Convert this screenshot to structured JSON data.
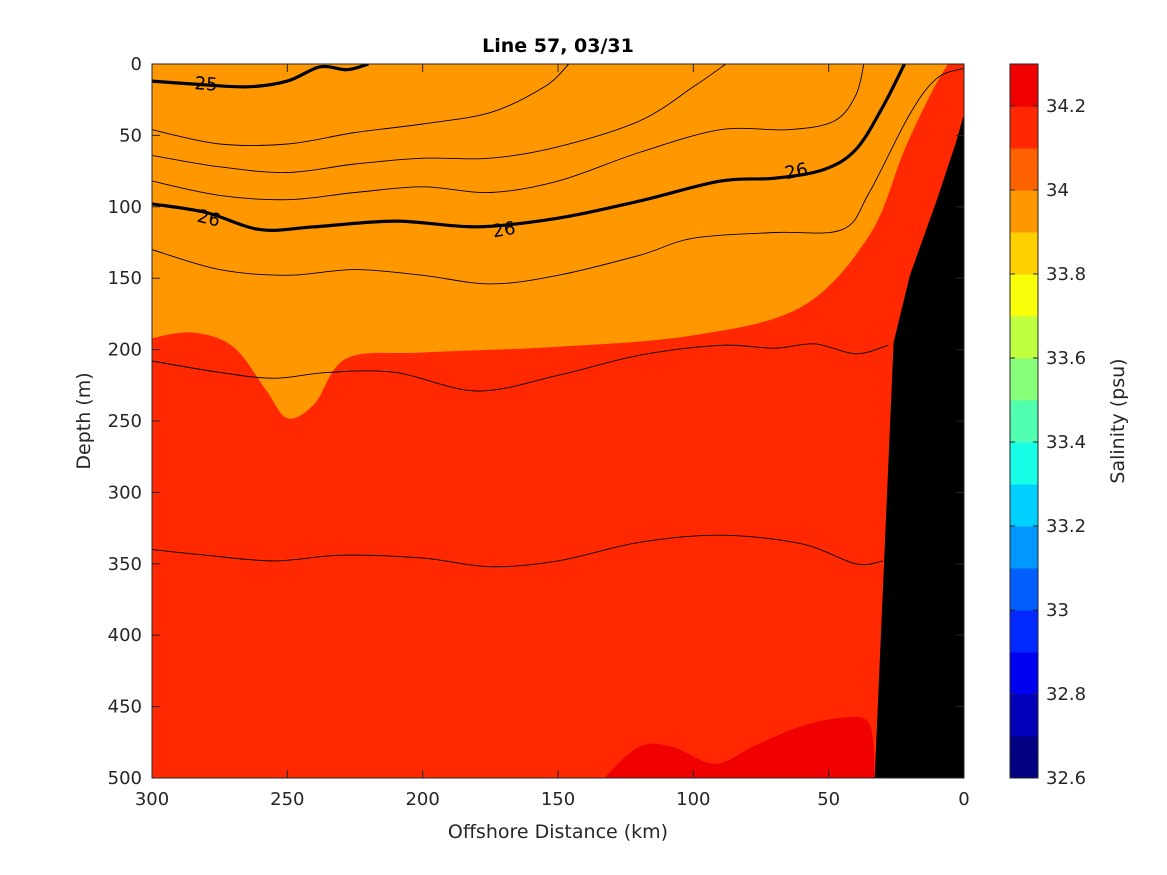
{
  "chart_data": {
    "type": "heatmap",
    "subtype": "filled contour section",
    "title": "Line 57, 03/31",
    "xlabel": "Offshore Distance (km)",
    "ylabel": "Depth (m)",
    "colorbar_label": "Salinity (psu)",
    "xlim": [
      300,
      0
    ],
    "ylim": [
      0,
      500
    ],
    "x_reversed": true,
    "y_reversed": true,
    "xticks": [
      300,
      250,
      200,
      150,
      100,
      50,
      0
    ],
    "yticks": [
      0,
      50,
      100,
      150,
      200,
      250,
      300,
      350,
      400,
      450,
      500
    ],
    "colorbar": {
      "levels": [
        32.6,
        32.7,
        32.8,
        32.9,
        33.0,
        33.1,
        33.2,
        33.3,
        33.4,
        33.5,
        33.6,
        33.7,
        33.8,
        33.9,
        34.0,
        34.1,
        34.2,
        34.3
      ],
      "ticks": [
        32.6,
        32.8,
        33.0,
        33.2,
        33.4,
        33.6,
        33.8,
        34.0,
        34.2
      ],
      "tick_labels": [
        "32.6",
        "32.8",
        "33",
        "33.2",
        "33.4",
        "33.6",
        "33.8",
        "34",
        "34.2"
      ],
      "colors": [
        "#000080",
        "#0000b8",
        "#0000f0",
        "#0028ff",
        "#0060ff",
        "#0098ff",
        "#00d0ff",
        "#18ffe8",
        "#50ffb0",
        "#88ff78",
        "#c0ff40",
        "#f8ff08",
        "#ffd000",
        "#ff9800",
        "#ff6000",
        "#ff2800",
        "#f00000",
        "#b80000"
      ]
    },
    "salinity_boundaries": [
      {
        "level": 32.9,
        "points": [
          [
            300,
            45
          ],
          [
            270,
            55
          ],
          [
            240,
            48
          ],
          [
            215,
            40
          ],
          [
            175,
            30
          ],
          [
            162,
            0
          ]
        ]
      },
      {
        "level": 33.0,
        "points": [
          [
            300,
            55
          ],
          [
            260,
            62
          ],
          [
            215,
            52
          ],
          [
            170,
            44
          ],
          [
            145,
            30
          ],
          [
            132,
            0
          ]
        ]
      },
      {
        "level": 33.1,
        "points": [
          [
            300,
            62
          ],
          [
            250,
            70
          ],
          [
            200,
            62
          ],
          [
            160,
            55
          ],
          [
            120,
            40
          ],
          [
            100,
            25
          ],
          [
            90,
            0
          ]
        ]
      },
      {
        "level": 33.2,
        "points": [
          [
            300,
            70
          ],
          [
            250,
            78
          ],
          [
            200,
            70
          ],
          [
            150,
            68
          ],
          [
            110,
            55
          ],
          [
            75,
            42
          ],
          [
            58,
            0
          ]
        ]
      },
      {
        "level": 33.3,
        "points": [
          [
            300,
            78
          ],
          [
            250,
            86
          ],
          [
            200,
            78
          ],
          [
            150,
            80
          ],
          [
            100,
            65
          ],
          [
            55,
            52
          ],
          [
            48,
            0
          ]
        ]
      },
      {
        "level": 33.4,
        "points": [
          [
            300,
            86
          ],
          [
            250,
            94
          ],
          [
            200,
            86
          ],
          [
            150,
            88
          ],
          [
            100,
            74
          ],
          [
            50,
            62
          ],
          [
            44,
            0
          ]
        ]
      },
      {
        "level": 33.5,
        "points": [
          [
            300,
            93
          ],
          [
            250,
            102
          ],
          [
            200,
            94
          ],
          [
            150,
            96
          ],
          [
            100,
            82
          ],
          [
            45,
            70
          ],
          [
            38,
            0
          ]
        ]
      },
      {
        "level": 33.6,
        "points": [
          [
            300,
            100
          ],
          [
            250,
            110
          ],
          [
            200,
            102
          ],
          [
            150,
            104
          ],
          [
            100,
            90
          ],
          [
            42,
            80
          ],
          [
            34,
            0
          ]
        ]
      },
      {
        "level": 33.7,
        "points": [
          [
            300,
            110
          ],
          [
            250,
            120
          ],
          [
            200,
            112
          ],
          [
            150,
            115
          ],
          [
            100,
            100
          ],
          [
            40,
            92
          ],
          [
            30,
            0
          ]
        ]
      },
      {
        "level": 33.8,
        "points": [
          [
            300,
            126
          ],
          [
            250,
            134
          ],
          [
            200,
            125
          ],
          [
            150,
            130
          ],
          [
            100,
            115
          ],
          [
            42,
            110
          ],
          [
            26,
            0
          ]
        ]
      },
      {
        "level": 33.9,
        "points": [
          [
            300,
            140
          ],
          [
            250,
            143
          ],
          [
            200,
            138
          ],
          [
            150,
            146
          ],
          [
            100,
            130
          ],
          [
            40,
            125
          ],
          [
            18,
            0
          ]
        ]
      },
      {
        "level": 34.0,
        "points": [
          [
            300,
            192
          ],
          [
            285,
            188
          ],
          [
            270,
            198
          ],
          [
            258,
            228
          ],
          [
            250,
            248
          ],
          [
            240,
            238
          ],
          [
            228,
            206
          ],
          [
            200,
            202
          ],
          [
            150,
            198
          ],
          [
            100,
            190
          ],
          [
            60,
            170
          ],
          [
            35,
            120
          ],
          [
            22,
            60
          ],
          [
            12,
            20
          ],
          [
            6,
            0
          ]
        ]
      },
      {
        "level": 34.1,
        "points": [
          [
            300,
            392
          ],
          [
            288,
            400
          ],
          [
            278,
            420
          ],
          [
            260,
            440
          ],
          [
            232,
            452
          ],
          [
            215,
            448
          ],
          [
            200,
            410
          ],
          [
            180,
            382
          ],
          [
            165,
            355
          ],
          [
            150,
            350
          ],
          [
            120,
            330
          ],
          [
            100,
            312
          ],
          [
            82,
            310
          ],
          [
            62,
            290
          ],
          [
            45,
            262
          ],
          [
            34,
            250
          ],
          [
            28,
            180
          ],
          [
            18,
            100
          ],
          [
            8,
            30
          ]
        ]
      },
      {
        "level": 34.2,
        "points": [
          [
            133,
            500
          ],
          [
            120,
            478
          ],
          [
            108,
            478
          ],
          [
            92,
            490
          ],
          [
            78,
            478
          ],
          [
            62,
            465
          ],
          [
            46,
            458
          ],
          [
            35,
            462
          ],
          [
            33,
            500
          ]
        ]
      }
    ],
    "density_isopycnals": [
      {
        "label": "25",
        "bold": true,
        "points": [
          [
            300,
            12
          ],
          [
            285,
            14
          ],
          [
            265,
            16
          ],
          [
            250,
            12
          ],
          [
            238,
            2
          ],
          [
            228,
            4
          ],
          [
            220,
            0
          ]
        ]
      },
      {
        "label": "",
        "bold": false,
        "points": [
          [
            300,
            46
          ],
          [
            275,
            56
          ],
          [
            250,
            56
          ],
          [
            225,
            48
          ],
          [
            200,
            42
          ],
          [
            175,
            34
          ],
          [
            155,
            16
          ],
          [
            146,
            0
          ]
        ]
      },
      {
        "label": "",
        "bold": false,
        "points": [
          [
            300,
            64
          ],
          [
            275,
            72
          ],
          [
            250,
            76
          ],
          [
            225,
            70
          ],
          [
            200,
            66
          ],
          [
            175,
            66
          ],
          [
            150,
            58
          ],
          [
            120,
            40
          ],
          [
            100,
            16
          ],
          [
            88,
            0
          ]
        ]
      },
      {
        "label": "",
        "bold": false,
        "points": [
          [
            300,
            82
          ],
          [
            275,
            92
          ],
          [
            250,
            95
          ],
          [
            225,
            90
          ],
          [
            200,
            86
          ],
          [
            175,
            90
          ],
          [
            150,
            82
          ],
          [
            120,
            62
          ],
          [
            90,
            46
          ],
          [
            65,
            46
          ],
          [
            48,
            40
          ],
          [
            40,
            22
          ],
          [
            37,
            0
          ]
        ]
      },
      {
        "label": "26",
        "bold": true,
        "points": [
          [
            300,
            98
          ],
          [
            280,
            104
          ],
          [
            260,
            116
          ],
          [
            240,
            114
          ],
          [
            210,
            110
          ],
          [
            180,
            114
          ],
          [
            150,
            108
          ],
          [
            120,
            96
          ],
          [
            90,
            82
          ],
          [
            70,
            80
          ],
          [
            52,
            74
          ],
          [
            40,
            60
          ],
          [
            30,
            30
          ],
          [
            22,
            0
          ]
        ]
      },
      {
        "label": "",
        "bold": false,
        "points": [
          [
            300,
            130
          ],
          [
            275,
            144
          ],
          [
            250,
            148
          ],
          [
            225,
            144
          ],
          [
            200,
            148
          ],
          [
            175,
            154
          ],
          [
            150,
            148
          ],
          [
            120,
            134
          ],
          [
            100,
            122
          ],
          [
            70,
            118
          ],
          [
            45,
            116
          ],
          [
            35,
            90
          ],
          [
            20,
            35
          ],
          [
            10,
            10
          ],
          [
            0,
            3
          ]
        ]
      },
      {
        "label": "",
        "bold": false,
        "points": [
          [
            300,
            208
          ],
          [
            275,
            216
          ],
          [
            255,
            220
          ],
          [
            235,
            216
          ],
          [
            210,
            216
          ],
          [
            180,
            229
          ],
          [
            150,
            218
          ],
          [
            120,
            204
          ],
          [
            90,
            197
          ],
          [
            70,
            199
          ],
          [
            55,
            196
          ],
          [
            40,
            203
          ],
          [
            28,
            197
          ]
        ]
      },
      {
        "label": "",
        "bold": false,
        "points": [
          [
            300,
            340
          ],
          [
            280,
            344
          ],
          [
            255,
            348
          ],
          [
            230,
            344
          ],
          [
            200,
            346
          ],
          [
            175,
            352
          ],
          [
            150,
            348
          ],
          [
            120,
            335
          ],
          [
            90,
            330
          ],
          [
            60,
            336
          ],
          [
            40,
            350
          ],
          [
            30,
            348
          ]
        ]
      }
    ],
    "isopycnal_labels": [
      {
        "text": "25",
        "x": 280,
        "y": 14,
        "angle": 4
      },
      {
        "text": "26",
        "x": 279,
        "y": 108,
        "angle": 14
      },
      {
        "text": "26",
        "x": 170,
        "y": 116,
        "angle": -10
      },
      {
        "text": "26",
        "x": 62,
        "y": 75,
        "angle": -12
      }
    ],
    "bathymetry": {
      "color": "#000000",
      "points": [
        [
          33,
          500
        ],
        [
          26,
          195
        ],
        [
          20,
          148
        ],
        [
          10,
          95
        ],
        [
          3,
          55
        ],
        [
          0,
          35
        ],
        [
          0,
          500
        ]
      ]
    }
  }
}
